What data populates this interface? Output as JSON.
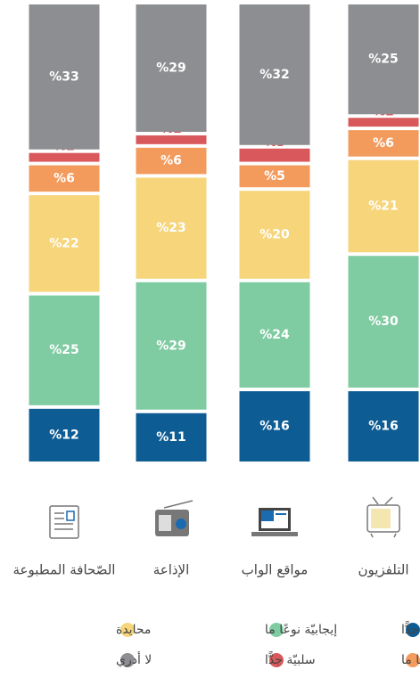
{
  "chart_data": {
    "type": "stacked_bar",
    "categories": [
      "الصّحافة المطبوعة",
      "الإذاعة",
      "مواقع الواب",
      "التلفزيون"
    ],
    "series": [
      {
        "name": "ايجابيّة جدًّا",
        "color": "#0e5c94",
        "values": [
          12,
          11,
          16,
          16
        ],
        "value_labels": [
          "%12",
          "%11",
          "%16",
          "%16"
        ]
      },
      {
        "name": "إيجابيّة نوعًا ما",
        "color": "#7fcba2",
        "values": [
          25,
          29,
          24,
          30
        ],
        "value_labels": [
          "%25",
          "%29",
          "%24",
          "%30"
        ]
      },
      {
        "name": "محايدة",
        "color": "#f6d57b",
        "values": [
          22,
          23,
          20,
          21
        ],
        "value_labels": [
          "%22",
          "%23",
          "%20",
          "%21"
        ]
      },
      {
        "name": "سلبيّة نوعًا ما",
        "color": "#f39b5d",
        "values": [
          6,
          6,
          5,
          6
        ],
        "value_labels": [
          "%6",
          "%6",
          "%5",
          "%6"
        ]
      },
      {
        "name": "سلبيّة جدًّا",
        "color": "#d9585b",
        "values": [
          2,
          2,
          3,
          2
        ],
        "value_labels": [
          "%2",
          "%2",
          "%3",
          "%2"
        ]
      },
      {
        "name": "لا أدري",
        "color": "#8d8e91",
        "values": [
          33,
          29,
          32,
          25
        ],
        "value_labels": [
          "%33",
          "%29",
          "%32",
          "%25"
        ]
      }
    ]
  }
}
